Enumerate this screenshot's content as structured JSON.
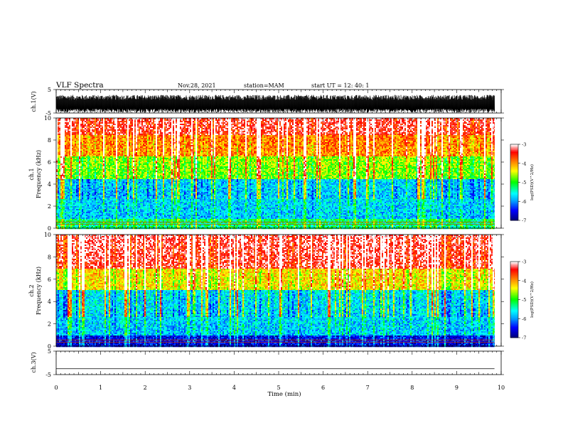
{
  "header": {
    "title": "VLF Spectra",
    "date": "Nov.28, 2021",
    "station": "station=MAM",
    "start": "start UT =   12: 40: 1"
  },
  "chart_data": [
    {
      "type": "line",
      "name": "ch.1 waveform",
      "ylabel": "ch.1(V)",
      "ylim": [
        -5,
        5
      ],
      "yticks": [
        -5,
        5
      ],
      "xlim": [
        0,
        10
      ],
      "signal": "dense noise-like waveform, roughly -5 to 2.5 V, ending near 9.8 min"
    },
    {
      "type": "heatmap",
      "name": "ch.1 spectrogram",
      "ylabel": "ch.1\nFrequency (kHz)",
      "ylim": [
        0,
        10
      ],
      "yticks": [
        0,
        2,
        4,
        6,
        8,
        10
      ],
      "xlim": [
        0,
        10
      ],
      "colorbar": {
        "label": "log(PSD)(V^2/Hz)",
        "range": [
          -7,
          -3
        ],
        "ticks": [
          -3,
          -4,
          -5,
          -6,
          -7
        ]
      },
      "bands": [
        {
          "from_khz": 0,
          "to_khz": 0.8,
          "level": -5.0
        },
        {
          "from_khz": 0.8,
          "to_khz": 2.8,
          "level": -5.6
        },
        {
          "from_khz": 2.8,
          "to_khz": 4.5,
          "level": -5.7
        },
        {
          "from_khz": 4.5,
          "to_khz": 6.5,
          "level": -4.7
        },
        {
          "from_khz": 6.5,
          "to_khz": 8.5,
          "level": -4.0
        },
        {
          "from_khz": 8.5,
          "to_khz": 10,
          "level": -3.5
        }
      ],
      "data_end_min": 9.85
    },
    {
      "type": "heatmap",
      "name": "ch.2 spectrogram",
      "ylabel": "ch.2\nFrequency (kHz)",
      "ylim": [
        0,
        10
      ],
      "yticks": [
        0,
        2,
        4,
        6,
        8,
        10
      ],
      "xlim": [
        0,
        10
      ],
      "colorbar": {
        "label": "log(PSD)(V^2/Hz)",
        "range": [
          -7,
          -3
        ],
        "ticks": [
          -3,
          -4,
          -5,
          -6,
          -7
        ]
      },
      "bands": [
        {
          "from_khz": 0,
          "to_khz": 1.0,
          "level": -6.3
        },
        {
          "from_khz": 1.0,
          "to_khz": 2.8,
          "level": -5.6
        },
        {
          "from_khz": 2.8,
          "to_khz": 5.0,
          "level": -5.6
        },
        {
          "from_khz": 5.0,
          "to_khz": 7.0,
          "level": -4.3
        },
        {
          "from_khz": 7.0,
          "to_khz": 10,
          "level": -3.4
        }
      ],
      "data_end_min": 9.85
    },
    {
      "type": "line",
      "name": "ch.3 waveform",
      "ylabel": "ch.3(V)",
      "ylim": [
        -5,
        5
      ],
      "yticks": [
        -5,
        5
      ],
      "xlim": [
        0,
        10
      ],
      "values_v": [
        -2.5,
        -2.5
      ],
      "x_min": [
        0,
        9.85
      ]
    }
  ],
  "xaxis": {
    "label": "Time (min)",
    "ticks": [
      "0",
      "1",
      "2",
      "3",
      "4",
      "5",
      "6",
      "7",
      "8",
      "9",
      "10"
    ]
  },
  "colors": {
    "colormap": [
      "#ffffff",
      "#ff0000",
      "#ffff00",
      "#00ff00",
      "#00ffff",
      "#0000ff",
      "#000080"
    ]
  }
}
